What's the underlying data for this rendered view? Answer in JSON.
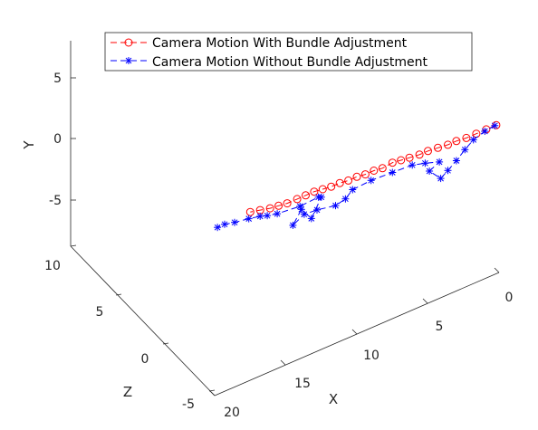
{
  "chart_data": {
    "type": "line",
    "projection": "3d",
    "xlabel": "X",
    "ylabel": "Y",
    "zlabel": "Z",
    "xlim": [
      0,
      20
    ],
    "ylim": [
      -8,
      8
    ],
    "zlim": [
      -5,
      10
    ],
    "x_ticks": [
      "0",
      "5",
      "10",
      "15",
      "20"
    ],
    "y_ticks": [
      "5",
      "0",
      "-5"
    ],
    "z_ticks": [
      "10",
      "5",
      "0",
      "-5"
    ],
    "legend_position": "top",
    "series": [
      {
        "name": "Camera Motion With Bundle Adjustment",
        "color": "#ff0000",
        "line_style": "dashed",
        "marker": "circle",
        "points": [
          [
            0.2,
            1.2,
            0
          ],
          [
            0.9,
            1.2,
            0
          ],
          [
            1.6,
            1.2,
            0
          ],
          [
            2.3,
            1.2,
            0
          ],
          [
            3.0,
            1.3,
            0
          ],
          [
            3.6,
            1.3,
            0
          ],
          [
            4.3,
            1.4,
            0
          ],
          [
            5.0,
            1.5,
            0
          ],
          [
            5.6,
            1.5,
            0
          ],
          [
            6.3,
            1.6,
            0
          ],
          [
            6.9,
            1.7,
            0
          ],
          [
            7.5,
            1.8,
            0
          ],
          [
            8.2,
            1.7,
            0
          ],
          [
            8.8,
            1.8,
            0
          ],
          [
            9.4,
            1.8,
            0
          ],
          [
            10.0,
            1.9,
            0
          ],
          [
            10.6,
            1.9,
            0
          ],
          [
            11.2,
            2.0,
            0
          ],
          [
            11.8,
            2.0,
            0
          ],
          [
            12.4,
            2.1,
            0
          ],
          [
            13.0,
            2.2,
            0
          ],
          [
            13.6,
            2.2,
            0
          ],
          [
            14.2,
            2.2,
            0
          ],
          [
            14.9,
            2.2,
            0
          ],
          [
            15.5,
            2.3,
            0
          ],
          [
            16.1,
            2.4,
            0
          ],
          [
            16.8,
            2.6,
            0
          ],
          [
            17.5,
            2.8,
            0
          ]
        ]
      },
      {
        "name": "Camera Motion Without Bundle Adjustment",
        "color": "#0000ff",
        "line_style": "dashed",
        "marker": "asterisk",
        "points": [
          [
            0.3,
            1.2,
            0
          ],
          [
            1.0,
            1.1,
            0
          ],
          [
            1.8,
            0.8,
            0
          ],
          [
            2.4,
            0.3,
            0
          ],
          [
            3.0,
            -0.3,
            0
          ],
          [
            3.6,
            -0.8,
            0
          ],
          [
            4.1,
            -1.2,
            0
          ],
          [
            4.9,
            -0.2,
            0
          ],
          [
            4.2,
            0.2,
            0
          ],
          [
            5.2,
            0.6,
            0
          ],
          [
            6.1,
            0.9,
            0
          ],
          [
            7.5,
            1.0,
            0
          ],
          [
            9.0,
            1.1,
            0
          ],
          [
            10.3,
            1.0,
            0
          ],
          [
            10.8,
            0.5,
            0
          ],
          [
            11.5,
            0.3,
            0
          ],
          [
            12.8,
            0.6,
            0
          ],
          [
            13.7,
            0.7,
            0
          ],
          [
            14.5,
            0.2,
            0
          ],
          [
            13.9,
            1.2,
            0
          ],
          [
            13.2,
            0.1,
            0
          ],
          [
            12.5,
            1.5,
            0
          ],
          [
            12.7,
            1.6,
            0
          ],
          [
            14.0,
            1.5,
            0
          ],
          [
            15.6,
            1.7,
            0
          ],
          [
            16.3,
            1.9,
            0
          ],
          [
            16.8,
            2.1,
            0
          ],
          [
            17.6,
            2.3,
            0
          ],
          [
            18.6,
            2.5,
            0
          ],
          [
            19.3,
            2.7,
            0
          ],
          [
            19.8,
            2.7,
            0
          ]
        ]
      }
    ]
  }
}
